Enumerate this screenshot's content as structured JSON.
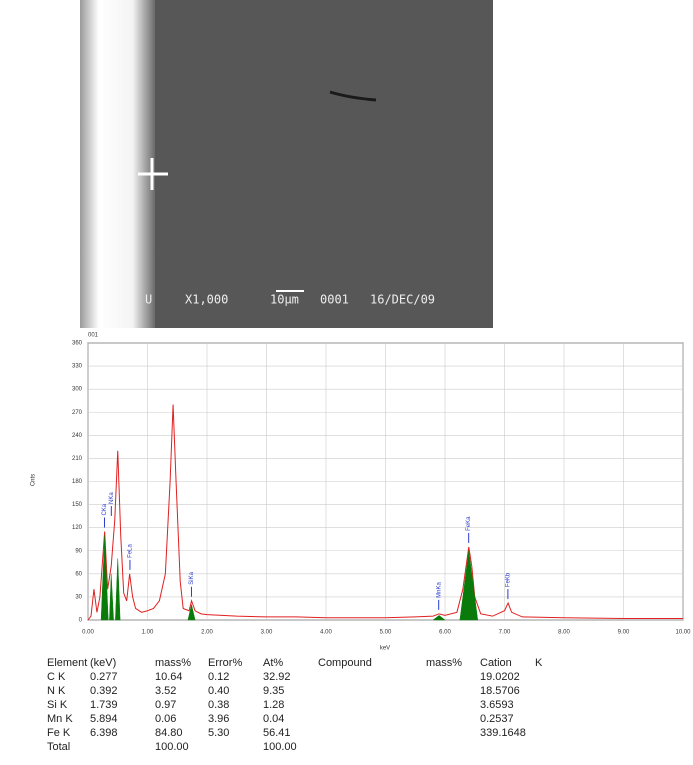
{
  "image": {
    "captions": [
      "U",
      "X1,000",
      "10µm",
      "0001",
      "16/DEC/09"
    ]
  },
  "chart_data": {
    "type": "line",
    "title": "001",
    "xlabel": "keV",
    "ylabel": "Cnts",
    "xlim": [
      0,
      10
    ],
    "ylim": [
      0,
      360
    ],
    "grid": true,
    "xticks": [
      {
        "value": 0,
        "label": "0.00"
      },
      {
        "value": 1,
        "label": "1.00"
      },
      {
        "value": 2,
        "label": "2.00"
      },
      {
        "value": 3,
        "label": "3.00"
      },
      {
        "value": 4,
        "label": "4.00"
      },
      {
        "value": 5,
        "label": "5.00"
      },
      {
        "value": 6,
        "label": "6.00"
      },
      {
        "value": 7,
        "label": "7.00"
      },
      {
        "value": 8,
        "label": "8.00"
      },
      {
        "value": 9,
        "label": "9.00"
      },
      {
        "value": 10,
        "label": "10.00"
      }
    ],
    "yticks": [
      0,
      30,
      60,
      90,
      120,
      150,
      180,
      210,
      240,
      270,
      300,
      330,
      360
    ],
    "series": [
      {
        "color": "#e02020",
        "fill": false,
        "x": [
          0,
          0.05,
          0.1,
          0.15,
          0.2,
          0.28,
          0.33,
          0.39,
          0.45,
          0.5,
          0.55,
          0.6,
          0.65,
          0.7,
          0.75,
          0.8,
          0.9,
          1.0,
          1.1,
          1.2,
          1.3,
          1.38,
          1.43,
          1.48,
          1.55,
          1.6,
          1.7,
          1.74,
          1.8,
          1.9,
          2.0,
          2.5,
          3.0,
          3.5,
          4.0,
          4.5,
          5.0,
          5.5,
          5.8,
          5.9,
          6.0,
          6.2,
          6.3,
          6.4,
          6.45,
          6.5,
          6.6,
          6.8,
          7.0,
          7.06,
          7.12,
          7.3,
          8,
          9,
          10
        ],
        "values": [
          0,
          5,
          40,
          10,
          30,
          115,
          40,
          70,
          130,
          220,
          110,
          35,
          25,
          60,
          30,
          15,
          10,
          12,
          15,
          25,
          60,
          180,
          280,
          180,
          50,
          15,
          12,
          25,
          12,
          8,
          7,
          5,
          4,
          4,
          3,
          3,
          3,
          4,
          5,
          8,
          6,
          10,
          40,
          95,
          70,
          30,
          8,
          5,
          12,
          22,
          10,
          4,
          3,
          2,
          2
        ]
      },
      {
        "color": "#0a7a0a",
        "fill": true,
        "x": [
          0.22,
          0.28,
          0.34,
          null,
          0.36,
          0.39,
          0.43,
          null,
          0.46,
          0.5,
          0.54,
          null,
          1.68,
          1.74,
          1.8,
          null,
          5.8,
          5.9,
          6.0,
          null,
          6.25,
          6.4,
          6.55
        ],
        "values": [
          0,
          110,
          0,
          null,
          0,
          60,
          0,
          null,
          0,
          80,
          0,
          null,
          0,
          20,
          0,
          null,
          0,
          6,
          0,
          null,
          0,
          90,
          0
        ]
      }
    ],
    "annotations": [
      {
        "text": "CKa",
        "x": 0.277
      },
      {
        "text": "NKa",
        "x": 0.392
      },
      {
        "text": "FeLa",
        "x": 0.705
      },
      {
        "text": "SiKa",
        "x": 1.739
      },
      {
        "text": "MnKa",
        "x": 5.894
      },
      {
        "text": "FeKa",
        "x": 6.398
      },
      {
        "text": "FeKb",
        "x": 7.057
      }
    ]
  },
  "table": {
    "header": [
      "Element",
      "(keV)",
      "mass%",
      "Error%",
      "At%",
      "Compound",
      "mass%",
      "Cation",
      "K"
    ],
    "rows": [
      {
        "element": "C K",
        "kev": "0.277",
        "mass": "10.64",
        "error": "0.12",
        "at": "32.92",
        "cation": "19.0202"
      },
      {
        "element": "N K",
        "kev": "0.392",
        "mass": "3.52",
        "error": "0.40",
        "at": "9.35",
        "cation": "18.5706"
      },
      {
        "element": "Si K",
        "kev": "1.739",
        "mass": "0.97",
        "error": "0.38",
        "at": "1.28",
        "cation": "3.6593"
      },
      {
        "element": "Mn K",
        "kev": "5.894",
        "mass": "0.06",
        "error": "3.96",
        "at": "0.04",
        "cation": "0.2537"
      },
      {
        "element": "Fe K",
        "kev": "6.398",
        "mass": "84.80",
        "error": "5.30",
        "at": "56.41",
        "cation": "339.1648"
      },
      {
        "element": "Total",
        "mass": "100.00",
        "at": "100.00"
      }
    ]
  }
}
